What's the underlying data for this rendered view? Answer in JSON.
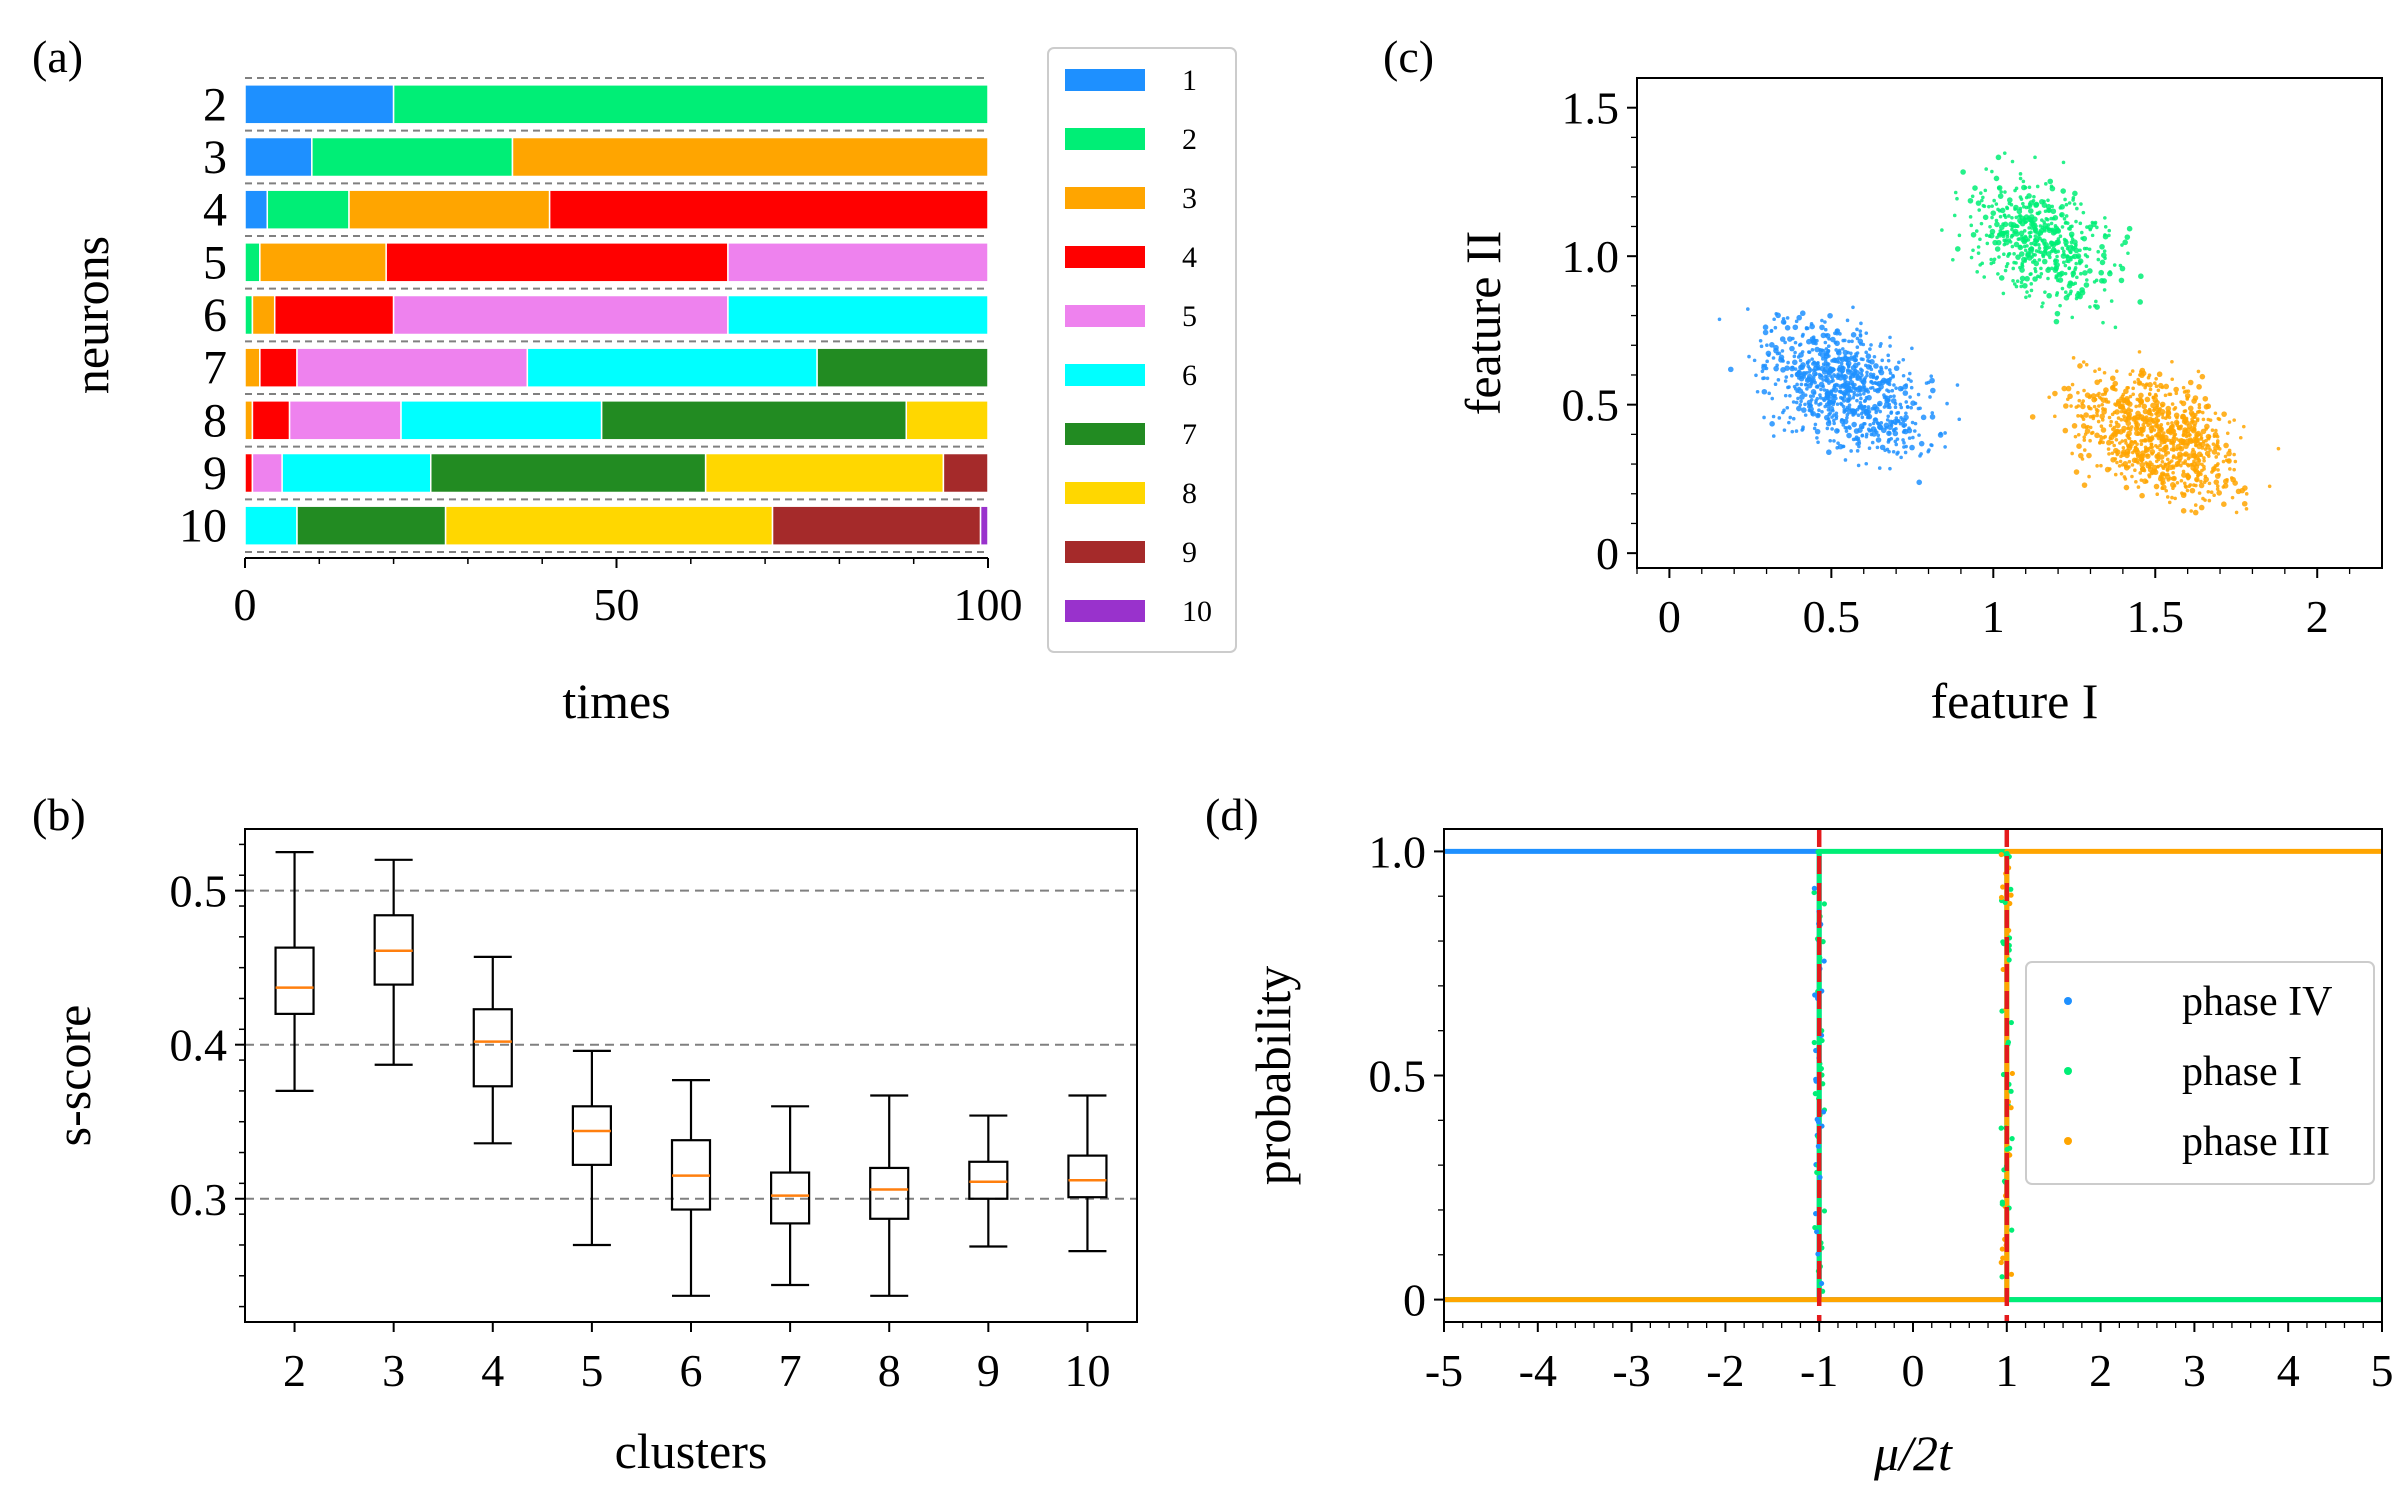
{
  "colors": {
    "c1": "#1e90ff",
    "c2": "#00ee76",
    "c3": "#ffa500",
    "c4": "#ff0000",
    "c5": "#ee82ee",
    "c6": "#00ffff",
    "c7": "#228b22",
    "c8": "#ffd700",
    "c9": "#a52a2a",
    "c10": "#9932cc",
    "median": "#ff7f0e",
    "vline": "#e41a1c",
    "grid": "#808080"
  },
  "panel_labels": {
    "a": "(a)",
    "b": "(b)",
    "c": "(c)",
    "d": "(d)"
  },
  "chart_data": [
    {
      "panel": "(a)",
      "type": "bar",
      "orientation": "horizontal-stacked",
      "xlabel": "times",
      "ylabel": "neurons",
      "xlim": [
        0,
        100
      ],
      "xticks": [
        "0",
        "50",
        "100"
      ],
      "legend": [
        "1",
        "2",
        "3",
        "4",
        "5",
        "6",
        "7",
        "8",
        "9",
        "10"
      ],
      "rows": [
        {
          "label": "2",
          "segments": [
            [
              1,
              20
            ],
            [
              2,
              80
            ]
          ]
        },
        {
          "label": "3",
          "segments": [
            [
              1,
              9
            ],
            [
              2,
              27
            ],
            [
              3,
              64
            ]
          ]
        },
        {
          "label": "4",
          "segments": [
            [
              1,
              3
            ],
            [
              2,
              11
            ],
            [
              3,
              27
            ],
            [
              4,
              59
            ]
          ]
        },
        {
          "label": "5",
          "segments": [
            [
              2,
              2
            ],
            [
              3,
              17
            ],
            [
              4,
              46
            ],
            [
              5,
              35
            ]
          ]
        },
        {
          "label": "6",
          "segments": [
            [
              2,
              1
            ],
            [
              3,
              3
            ],
            [
              4,
              16
            ],
            [
              5,
              45
            ],
            [
              6,
              35
            ]
          ]
        },
        {
          "label": "7",
          "segments": [
            [
              3,
              2
            ],
            [
              4,
              5
            ],
            [
              5,
              31
            ],
            [
              6,
              39
            ],
            [
              7,
              23
            ]
          ]
        },
        {
          "label": "8",
          "segments": [
            [
              3,
              1
            ],
            [
              4,
              5
            ],
            [
              5,
              15
            ],
            [
              6,
              27
            ],
            [
              7,
              41
            ],
            [
              8,
              11
            ]
          ]
        },
        {
          "label": "9",
          "segments": [
            [
              4,
              1
            ],
            [
              5,
              4
            ],
            [
              6,
              20
            ],
            [
              7,
              37
            ],
            [
              8,
              32
            ],
            [
              9,
              6
            ]
          ]
        },
        {
          "label": "10",
          "segments": [
            [
              6,
              7
            ],
            [
              7,
              20
            ],
            [
              8,
              44
            ],
            [
              9,
              28
            ],
            [
              10,
              1
            ]
          ]
        }
      ]
    },
    {
      "panel": "(b)",
      "type": "box",
      "xlabel": "clusters",
      "ylabel": "s-score",
      "ylim": [
        0.22,
        0.54
      ],
      "yticks": [
        "0.3",
        "0.4",
        "0.5"
      ],
      "grid_y": [
        0.3,
        0.4,
        0.5
      ],
      "categories": [
        "2",
        "3",
        "4",
        "5",
        "6",
        "7",
        "8",
        "9",
        "10"
      ],
      "boxes": [
        {
          "whislo": 0.37,
          "q1": 0.42,
          "med": 0.437,
          "q3": 0.463,
          "whishi": 0.525
        },
        {
          "whislo": 0.387,
          "q1": 0.439,
          "med": 0.461,
          "q3": 0.484,
          "whishi": 0.52
        },
        {
          "whislo": 0.336,
          "q1": 0.373,
          "med": 0.402,
          "q3": 0.423,
          "whishi": 0.457
        },
        {
          "whislo": 0.27,
          "q1": 0.322,
          "med": 0.344,
          "q3": 0.36,
          "whishi": 0.396
        },
        {
          "whislo": 0.237,
          "q1": 0.293,
          "med": 0.315,
          "q3": 0.338,
          "whishi": 0.377
        },
        {
          "whislo": 0.244,
          "q1": 0.284,
          "med": 0.302,
          "q3": 0.317,
          "whishi": 0.36
        },
        {
          "whislo": 0.237,
          "q1": 0.287,
          "med": 0.306,
          "q3": 0.32,
          "whishi": 0.367
        },
        {
          "whislo": 0.269,
          "q1": 0.3,
          "med": 0.311,
          "q3": 0.324,
          "whishi": 0.354
        },
        {
          "whislo": 0.266,
          "q1": 0.301,
          "med": 0.312,
          "q3": 0.328,
          "whishi": 0.367
        }
      ]
    },
    {
      "panel": "(c)",
      "type": "scatter",
      "xlabel": "feature I",
      "ylabel": "feature II",
      "xlim": [
        -0.1,
        2.2
      ],
      "ylim": [
        -0.05,
        1.6
      ],
      "xticks": [
        "0",
        "0.5",
        "1",
        "1.5",
        "2"
      ],
      "yticks": [
        "0",
        "0.5",
        "1.0",
        "1.5"
      ],
      "clusters": [
        {
          "color": "c1",
          "center": [
            0.55,
            0.55
          ],
          "spread": [
            0.45,
            0.35
          ],
          "count": 850
        },
        {
          "color": "c2",
          "center": [
            1.15,
            1.05
          ],
          "spread": [
            0.4,
            0.35
          ],
          "count": 550
        },
        {
          "color": "c3",
          "center": [
            1.5,
            0.4
          ],
          "spread": [
            0.45,
            0.35
          ],
          "count": 850
        }
      ]
    },
    {
      "panel": "(d)",
      "type": "line",
      "xlabel": "μ/2t",
      "ylabel": "probability",
      "xlim": [
        -5,
        5
      ],
      "ylim": [
        -0.05,
        1.05
      ],
      "xticks": [
        "-5",
        "-4",
        "-3",
        "-2",
        "-1",
        "0",
        "1",
        "2",
        "3",
        "4",
        "5"
      ],
      "yticks": [
        "0",
        "0.5",
        "1.0"
      ],
      "vlines": [
        -1,
        1
      ],
      "series": [
        {
          "name": "phase IV",
          "color": "c1",
          "segments": [
            [
              -5,
              1
            ],
            [
              -1,
              1
            ],
            [
              -1,
              0
            ],
            [
              5,
              0
            ]
          ]
        },
        {
          "name": "phase I",
          "color": "c2",
          "segments": [
            [
              -5,
              0
            ],
            [
              -1,
              0
            ],
            [
              -1,
              1
            ],
            [
              1,
              1
            ],
            [
              1,
              0
            ],
            [
              5,
              0
            ]
          ]
        },
        {
          "name": "phase III",
          "color": "c3",
          "segments": [
            [
              -5,
              0
            ],
            [
              1,
              0
            ],
            [
              1,
              1
            ],
            [
              5,
              1
            ]
          ]
        }
      ]
    }
  ]
}
